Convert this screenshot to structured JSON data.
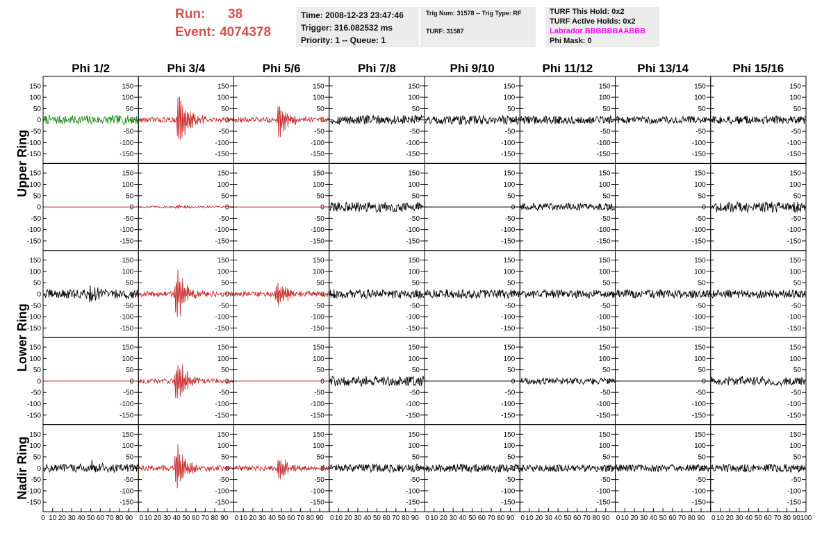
{
  "run": {
    "run_label": "Run:",
    "run_value": "38",
    "event_label": "Event:",
    "event_value": "4074378"
  },
  "info1": {
    "time": "Time: 2008-12-23 23:47:46",
    "trigger": "Trigger: 316.082532 ms",
    "priority": "Priority: 1 -- Queue: 1"
  },
  "info2": {
    "trig": "Trig Num: 31578 -- Trig Type: RF",
    "turf": "TURF: 31587"
  },
  "info3": {
    "hold": "TURF This Hold: 0x2",
    "active": "TURF Active Holds: 0x2",
    "labrador": "Labrador BBBBBBAABBB",
    "phimask": "Phi Mask: 0"
  },
  "colors": {
    "run_text": "#d2524f",
    "labrador": "#ff00ff",
    "green": "#1e8a1e",
    "red": "#c82828",
    "black": "#000000"
  },
  "chart_data": {
    "type": "line",
    "columns": [
      "Phi 1/2",
      "Phi 3/4",
      "Phi 5/6",
      "Phi 7/8",
      "Phi 9/10",
      "Phi 11/12",
      "Phi 13/14",
      "Phi 15/16"
    ],
    "group_labels": [
      "Upper Ring",
      "Lower Ring",
      "Nadir Ring"
    ],
    "ylim": [
      -180,
      180
    ],
    "yticks": [
      -150,
      -100,
      -50,
      0,
      50,
      100,
      150
    ],
    "xlim": [
      0,
      100
    ],
    "xticks": [
      "0",
      "10",
      "20",
      "30",
      "40",
      "50",
      "60",
      "70",
      "80",
      "90",
      "100"
    ],
    "rows": [
      {
        "traces": [
          {
            "color": "green",
            "amplitude": 20,
            "peak": 0,
            "center": 0,
            "flat": false
          },
          {
            "color": "red",
            "amplitude": 12,
            "peak": 180,
            "center": 42,
            "flat": false
          },
          {
            "color": "red",
            "amplitude": 12,
            "peak": 115,
            "center": 47,
            "flat": false
          },
          {
            "color": "black",
            "amplitude": 20,
            "peak": 0,
            "center": 0,
            "flat": false
          },
          {
            "color": "black",
            "amplitude": 20,
            "peak": 0,
            "center": 0,
            "flat": false
          },
          {
            "color": "black",
            "amplitude": 18,
            "peak": 0,
            "center": 0,
            "flat": false
          },
          {
            "color": "black",
            "amplitude": 16,
            "peak": 0,
            "center": 0,
            "flat": false
          },
          {
            "color": "black",
            "amplitude": 18,
            "peak": 0,
            "center": 0,
            "flat": false
          }
        ]
      },
      {
        "traces": [
          {
            "color": "red",
            "amplitude": 0,
            "peak": 0,
            "center": 0,
            "flat": true
          },
          {
            "color": "red",
            "amplitude": 4,
            "peak": 10,
            "center": 40,
            "flat": false
          },
          {
            "color": "red",
            "amplitude": 0,
            "peak": 0,
            "center": 0,
            "flat": true
          },
          {
            "color": "black",
            "amplitude": 22,
            "peak": 0,
            "center": 0,
            "flat": false
          },
          {
            "color": "black",
            "amplitude": 0,
            "peak": 0,
            "center": 0,
            "flat": true
          },
          {
            "color": "black",
            "amplitude": 16,
            "peak": 0,
            "center": 0,
            "flat": false
          },
          {
            "color": "black",
            "amplitude": 0,
            "peak": 0,
            "center": 0,
            "flat": true
          },
          {
            "color": "black",
            "amplitude": 24,
            "peak": 0,
            "center": 0,
            "flat": false
          }
        ]
      },
      {
        "traces": [
          {
            "color": "black",
            "amplitude": 20,
            "peak": 45,
            "center": 50,
            "flat": false
          },
          {
            "color": "red",
            "amplitude": 12,
            "peak": 165,
            "center": 40,
            "flat": false
          },
          {
            "color": "red",
            "amplitude": 12,
            "peak": 90,
            "center": 45,
            "flat": false
          },
          {
            "color": "black",
            "amplitude": 20,
            "peak": 0,
            "center": 0,
            "flat": false
          },
          {
            "color": "black",
            "amplitude": 20,
            "peak": 0,
            "center": 0,
            "flat": false
          },
          {
            "color": "black",
            "amplitude": 18,
            "peak": 0,
            "center": 0,
            "flat": false
          },
          {
            "color": "black",
            "amplitude": 18,
            "peak": 0,
            "center": 0,
            "flat": false
          },
          {
            "color": "black",
            "amplitude": 18,
            "peak": 0,
            "center": 0,
            "flat": false
          }
        ]
      },
      {
        "traces": [
          {
            "color": "red",
            "amplitude": 0,
            "peak": 0,
            "center": 0,
            "flat": true
          },
          {
            "color": "red",
            "amplitude": 10,
            "peak": 140,
            "center": 40,
            "flat": false
          },
          {
            "color": "red",
            "amplitude": 0,
            "peak": 0,
            "center": 0,
            "flat": true
          },
          {
            "color": "black",
            "amplitude": 22,
            "peak": 0,
            "center": 0,
            "flat": false
          },
          {
            "color": "black",
            "amplitude": 0,
            "peak": 0,
            "center": 0,
            "flat": true
          },
          {
            "color": "black",
            "amplitude": 14,
            "peak": 0,
            "center": 0,
            "flat": false
          },
          {
            "color": "black",
            "amplitude": 0,
            "peak": 0,
            "center": 0,
            "flat": true
          },
          {
            "color": "black",
            "amplitude": 20,
            "peak": 0,
            "center": 0,
            "flat": false
          }
        ]
      },
      {
        "traces": [
          {
            "color": "black",
            "amplitude": 18,
            "peak": 40,
            "center": 50,
            "flat": false
          },
          {
            "color": "red",
            "amplitude": 12,
            "peak": 145,
            "center": 40,
            "flat": false
          },
          {
            "color": "red",
            "amplitude": 12,
            "peak": 80,
            "center": 47,
            "flat": false
          },
          {
            "color": "black",
            "amplitude": 18,
            "peak": 0,
            "center": 0,
            "flat": false
          },
          {
            "color": "black",
            "amplitude": 18,
            "peak": 0,
            "center": 0,
            "flat": false
          },
          {
            "color": "black",
            "amplitude": 16,
            "peak": 0,
            "center": 0,
            "flat": false
          },
          {
            "color": "black",
            "amplitude": 16,
            "peak": 0,
            "center": 0,
            "flat": false
          },
          {
            "color": "black",
            "amplitude": 18,
            "peak": 0,
            "center": 0,
            "flat": false
          }
        ]
      }
    ]
  }
}
